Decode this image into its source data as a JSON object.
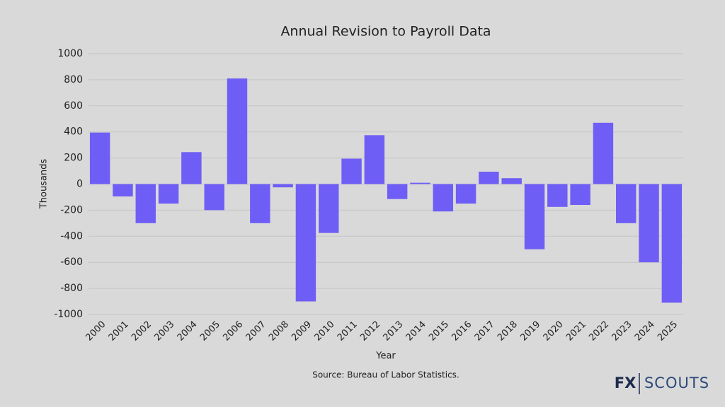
{
  "chart_data": {
    "type": "bar",
    "title": "Annual Revision to Payroll Data",
    "x_label": "Year",
    "y_label": "Thousands",
    "categories": [
      "2000",
      "2001",
      "2002",
      "2003",
      "2004",
      "2005",
      "2006",
      "2007",
      "2008",
      "2009",
      "2010",
      "2011",
      "2012",
      "2013",
      "2014",
      "2015",
      "2016",
      "2017",
      "2018",
      "2019",
      "2020",
      "2021",
      "2022",
      "2023",
      "2024",
      "2025"
    ],
    "values": [
      395,
      -95,
      -300,
      -150,
      245,
      -200,
      810,
      -300,
      -25,
      -900,
      -375,
      195,
      375,
      -115,
      10,
      -210,
      -150,
      95,
      45,
      -500,
      -175,
      -160,
      470,
      -300,
      -600,
      -910
    ],
    "color": "#6f5ef5",
    "ylim": [
      -1000,
      1000
    ],
    "yticks": [
      -1000,
      -800,
      -600,
      -400,
      -200,
      0,
      200,
      400,
      600,
      800,
      1000
    ],
    "grid": true
  },
  "source": "Source: Bureau of Labor Statistics.",
  "logo": {
    "left": "FX",
    "right": "SCOUTS"
  }
}
